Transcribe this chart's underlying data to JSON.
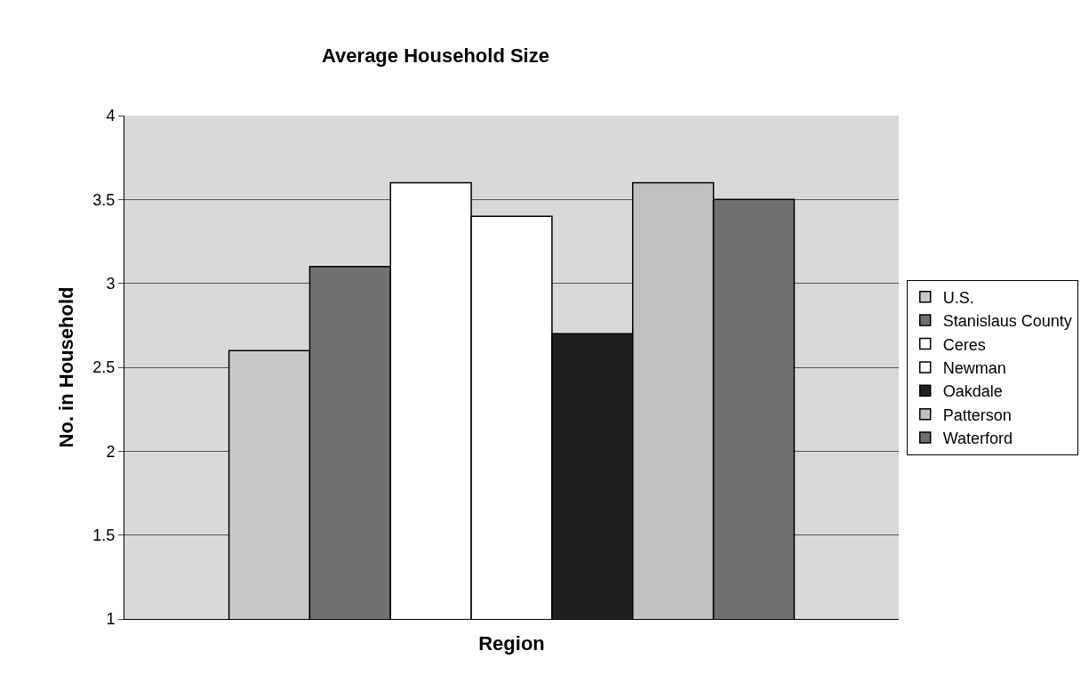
{
  "chart_data": {
    "type": "bar",
    "title": "Average Household Size",
    "xlabel": "Region",
    "ylabel": "No. in Household",
    "categories": [
      null
    ],
    "series": [
      {
        "name": "U.S.",
        "color": "#c8c8c8",
        "values": [
          2.6
        ]
      },
      {
        "name": "Stanislaus County",
        "color": "#707070",
        "values": [
          3.1
        ]
      },
      {
        "name": "Ceres",
        "color": "#ffffff",
        "values": [
          3.6
        ]
      },
      {
        "name": "Newman",
        "color": "#ffffff",
        "values": [
          3.4
        ]
      },
      {
        "name": "Oakdale",
        "color": "#202020",
        "values": [
          2.7
        ]
      },
      {
        "name": "Patterson",
        "color": "#c0c0c0",
        "values": [
          3.6
        ]
      },
      {
        "name": "Waterford",
        "color": "#707070",
        "values": [
          3.5
        ]
      }
    ],
    "ylim": [
      1,
      4
    ],
    "yticks": [
      1,
      1.5,
      2,
      2.5,
      3,
      3.5,
      4
    ],
    "grid": "y",
    "legend": "right"
  }
}
